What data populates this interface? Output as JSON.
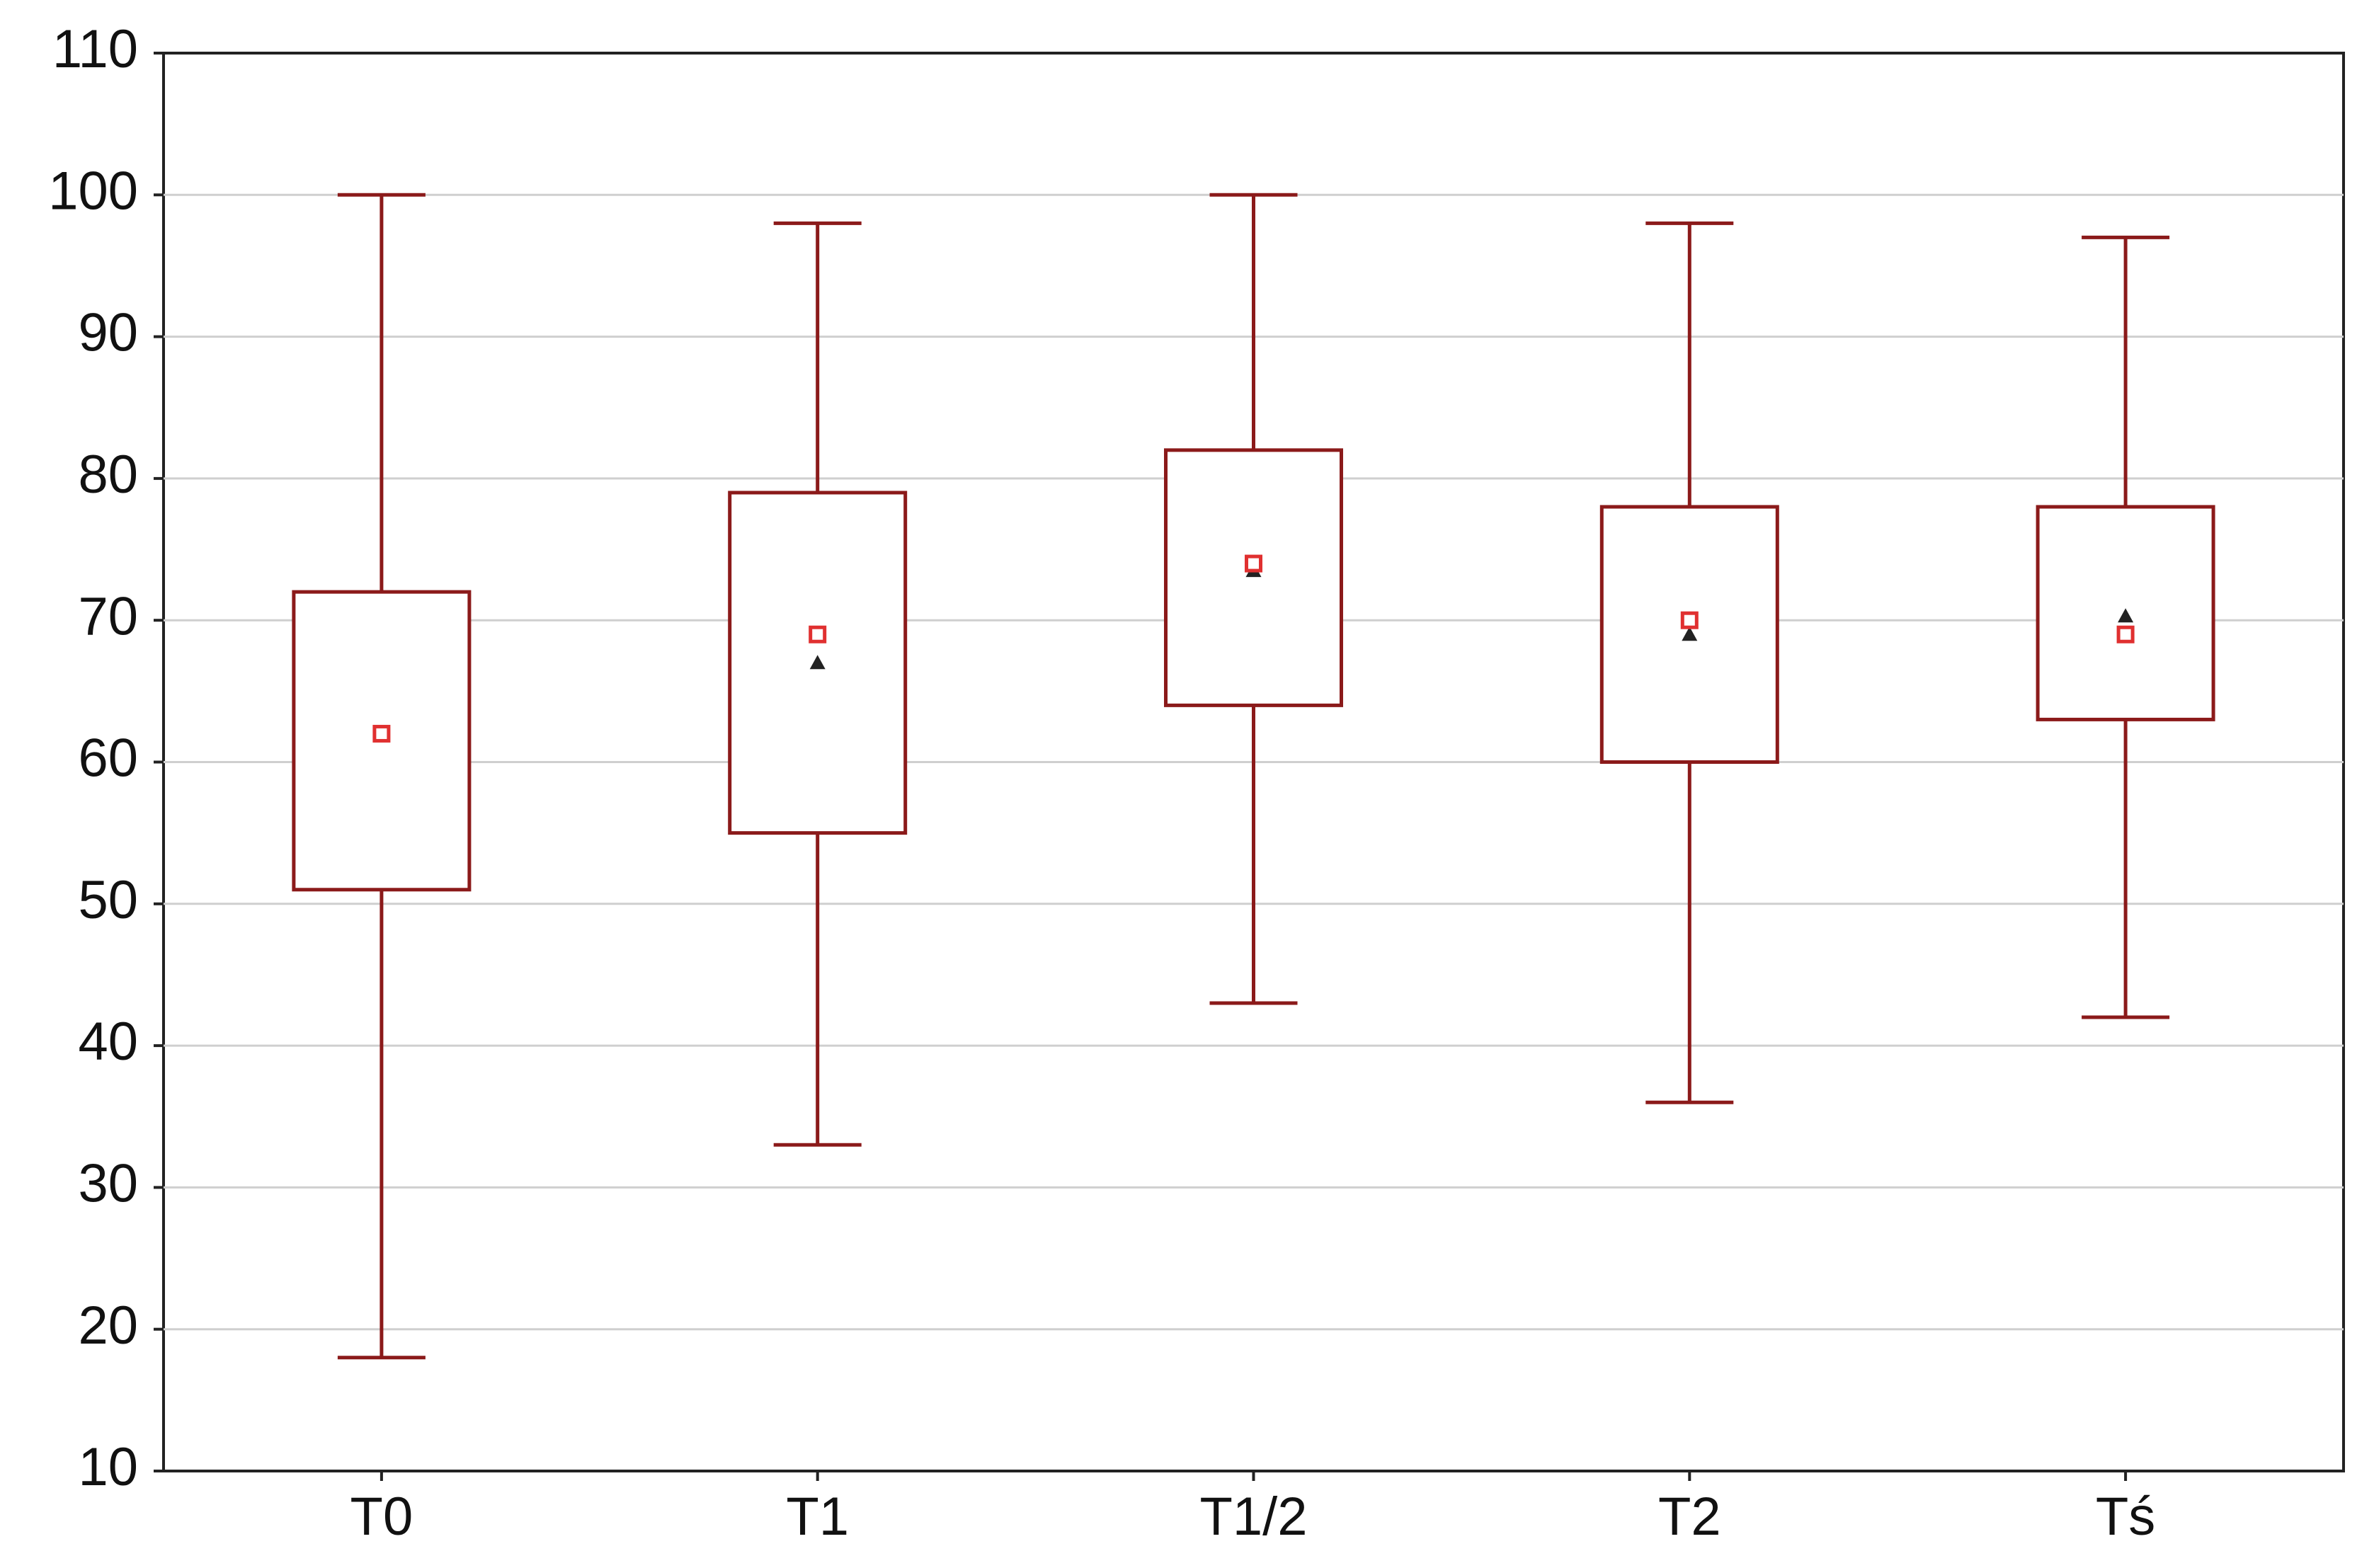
{
  "chart_data": {
    "type": "box",
    "categories": [
      "T0",
      "T1",
      "T1/2",
      "T2",
      "Tś"
    ],
    "boxes": [
      {
        "min": 18,
        "q1": 51,
        "median": 62,
        "q3": 72,
        "max": 100,
        "mean": 62
      },
      {
        "min": 33,
        "q1": 55,
        "median": 69,
        "q3": 79,
        "max": 98,
        "mean": 67
      },
      {
        "min": 43,
        "q1": 64,
        "median": 74,
        "q3": 82,
        "max": 100,
        "mean": 73.5
      },
      {
        "min": 36,
        "q1": 60,
        "median": 70,
        "q3": 78,
        "max": 98,
        "mean": 69
      },
      {
        "min": 42,
        "q1": 63,
        "median": 69,
        "q3": 78,
        "max": 97,
        "mean": 70.3
      }
    ],
    "box_color": "#8b1a1a",
    "median_color": "#e03030",
    "mean_color": "#222222",
    "ylim": [
      10,
      110
    ],
    "yticks": [
      10,
      20,
      30,
      40,
      50,
      60,
      70,
      80,
      90,
      100,
      110
    ],
    "grid": true
  }
}
